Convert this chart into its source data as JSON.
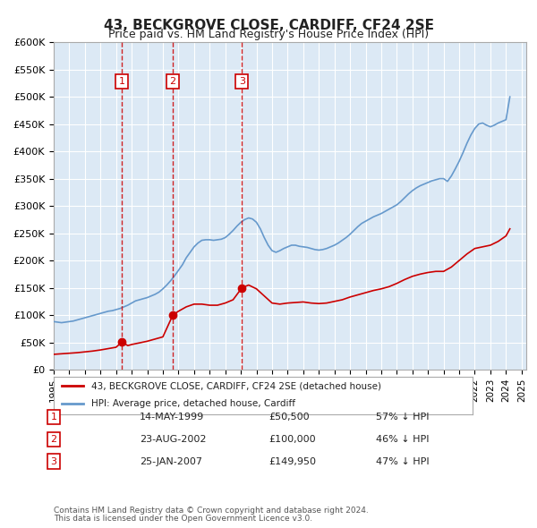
{
  "title": "43, BECKGROVE CLOSE, CARDIFF, CF24 2SE",
  "subtitle": "Price paid vs. HM Land Registry's House Price Index (HPI)",
  "xlabel": "",
  "ylabel": "",
  "ylim": [
    0,
    600000
  ],
  "yticks": [
    0,
    50000,
    100000,
    150000,
    200000,
    250000,
    300000,
    350000,
    400000,
    450000,
    500000,
    550000,
    600000
  ],
  "ytick_labels": [
    "£0",
    "£50K",
    "£100K",
    "£150K",
    "£200K",
    "£250K",
    "£300K",
    "£350K",
    "£400K",
    "£450K",
    "£500K",
    "£550K",
    "£600K"
  ],
  "bg_color": "#dce9f5",
  "plot_bg_color": "#dce9f5",
  "fig_bg_color": "#ffffff",
  "red_color": "#cc0000",
  "blue_color": "#6699cc",
  "transactions": [
    {
      "date_num": 1999.37,
      "price": 50500,
      "label": "1",
      "date_str": "14-MAY-1999",
      "pct": "57% ↓ HPI"
    },
    {
      "date_num": 2002.64,
      "price": 100000,
      "label": "2",
      "date_str": "23-AUG-2002",
      "pct": "46% ↓ HPI"
    },
    {
      "date_num": 2007.07,
      "price": 149950,
      "label": "3",
      "date_str": "25-JAN-2007",
      "pct": "47% ↓ HPI"
    }
  ],
  "legend_label_red": "43, BECKGROVE CLOSE, CARDIFF, CF24 2SE (detached house)",
  "legend_label_blue": "HPI: Average price, detached house, Cardiff",
  "footer_line1": "Contains HM Land Registry data © Crown copyright and database right 2024.",
  "footer_line2": "This data is licensed under the Open Government Licence v3.0.",
  "hpi_data": {
    "years": [
      1995.0,
      1995.25,
      1995.5,
      1995.75,
      1996.0,
      1996.25,
      1996.5,
      1996.75,
      1997.0,
      1997.25,
      1997.5,
      1997.75,
      1998.0,
      1998.25,
      1998.5,
      1998.75,
      1999.0,
      1999.25,
      1999.5,
      1999.75,
      2000.0,
      2000.25,
      2000.5,
      2000.75,
      2001.0,
      2001.25,
      2001.5,
      2001.75,
      2002.0,
      2002.25,
      2002.5,
      2002.75,
      2003.0,
      2003.25,
      2003.5,
      2003.75,
      2004.0,
      2004.25,
      2004.5,
      2004.75,
      2005.0,
      2005.25,
      2005.5,
      2005.75,
      2006.0,
      2006.25,
      2006.5,
      2006.75,
      2007.0,
      2007.25,
      2007.5,
      2007.75,
      2008.0,
      2008.25,
      2008.5,
      2008.75,
      2009.0,
      2009.25,
      2009.5,
      2009.75,
      2010.0,
      2010.25,
      2010.5,
      2010.75,
      2011.0,
      2011.25,
      2011.5,
      2011.75,
      2012.0,
      2012.25,
      2012.5,
      2012.75,
      2013.0,
      2013.25,
      2013.5,
      2013.75,
      2014.0,
      2014.25,
      2014.5,
      2014.75,
      2015.0,
      2015.25,
      2015.5,
      2015.75,
      2016.0,
      2016.25,
      2016.5,
      2016.75,
      2017.0,
      2017.25,
      2017.5,
      2017.75,
      2018.0,
      2018.25,
      2018.5,
      2018.75,
      2019.0,
      2019.25,
      2019.5,
      2019.75,
      2020.0,
      2020.25,
      2020.5,
      2020.75,
      2021.0,
      2021.25,
      2021.5,
      2021.75,
      2022.0,
      2022.25,
      2022.5,
      2022.75,
      2023.0,
      2023.25,
      2023.5,
      2023.75,
      2024.0,
      2024.25
    ],
    "values": [
      88000,
      87000,
      86000,
      87000,
      88000,
      89000,
      91000,
      93000,
      95000,
      97000,
      99000,
      101000,
      103000,
      105000,
      107000,
      108000,
      110000,
      112000,
      115000,
      118000,
      122000,
      126000,
      128000,
      130000,
      132000,
      135000,
      138000,
      142000,
      148000,
      155000,
      163000,
      172000,
      182000,
      192000,
      205000,
      215000,
      225000,
      232000,
      237000,
      238000,
      238000,
      237000,
      238000,
      239000,
      242000,
      248000,
      255000,
      263000,
      270000,
      275000,
      278000,
      276000,
      270000,
      258000,
      242000,
      228000,
      218000,
      215000,
      218000,
      222000,
      225000,
      228000,
      228000,
      226000,
      225000,
      224000,
      222000,
      220000,
      219000,
      220000,
      222000,
      225000,
      228000,
      232000,
      237000,
      242000,
      248000,
      255000,
      262000,
      268000,
      272000,
      276000,
      280000,
      283000,
      286000,
      290000,
      294000,
      298000,
      302000,
      308000,
      315000,
      322000,
      328000,
      333000,
      337000,
      340000,
      343000,
      346000,
      348000,
      350000,
      350000,
      345000,
      355000,
      368000,
      382000,
      398000,
      415000,
      430000,
      442000,
      450000,
      452000,
      448000,
      445000,
      448000,
      452000,
      455000,
      458000,
      500000
    ]
  },
  "price_data": {
    "years": [
      1995.0,
      1995.5,
      1996.0,
      1996.5,
      1997.0,
      1997.5,
      1998.0,
      1998.5,
      1999.0,
      1999.37,
      1999.75,
      2000.0,
      2000.5,
      2001.0,
      2001.5,
      2002.0,
      2002.64,
      2003.0,
      2003.5,
      2004.0,
      2004.5,
      2005.0,
      2005.5,
      2006.0,
      2006.5,
      2007.07,
      2007.5,
      2008.0,
      2008.5,
      2009.0,
      2009.5,
      2010.0,
      2010.5,
      2011.0,
      2011.5,
      2012.0,
      2012.5,
      2013.0,
      2013.5,
      2014.0,
      2014.5,
      2015.0,
      2015.5,
      2016.0,
      2016.5,
      2017.0,
      2017.5,
      2018.0,
      2018.5,
      2019.0,
      2019.5,
      2020.0,
      2020.5,
      2021.0,
      2021.5,
      2022.0,
      2022.5,
      2023.0,
      2023.5,
      2024.0,
      2024.25
    ],
    "values": [
      28000,
      29000,
      30000,
      31000,
      32500,
      34000,
      36000,
      38500,
      41000,
      50500,
      44000,
      46000,
      49000,
      52000,
      56000,
      60000,
      100000,
      107000,
      115000,
      120000,
      120000,
      118000,
      118000,
      122000,
      128000,
      149950,
      155000,
      148000,
      135000,
      122000,
      120000,
      122000,
      123000,
      124000,
      122000,
      121000,
      122000,
      125000,
      128000,
      133000,
      137000,
      141000,
      145000,
      148000,
      152000,
      158000,
      165000,
      171000,
      175000,
      178000,
      180000,
      180000,
      188000,
      200000,
      212000,
      222000,
      225000,
      228000,
      235000,
      245000,
      258000
    ]
  }
}
